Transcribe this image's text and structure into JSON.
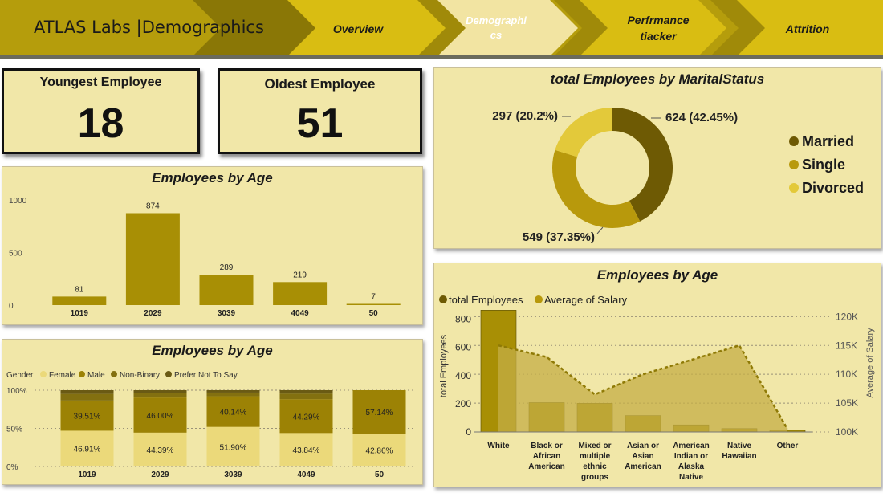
{
  "header": {
    "title": "ATLAS Labs |Demographics",
    "nav": [
      {
        "label": "Overview"
      },
      {
        "label": "Demographi cs",
        "active": true
      },
      {
        "label": "Perfrmance tiacker"
      },
      {
        "label": "Attrition"
      }
    ]
  },
  "kpis": {
    "youngest_label": "Youngest Employee",
    "youngest_value": "18",
    "oldest_label": "Oldest Employee",
    "oldest_value": "51"
  },
  "colors": {
    "banner": "#b59d0c",
    "card": "#f1e7a8",
    "bar": "#a88f05",
    "married": "#6e5a04",
    "single": "#b8990c",
    "divorced": "#e3c93a",
    "female": "#ebd97a",
    "male": "#9c8205",
    "nonbinary": "#837010",
    "prefer": "#6a5a14",
    "area": "#c4ae46"
  },
  "chart_data": [
    {
      "type": "bar",
      "title": "Employees by Age",
      "categories": [
        "1019",
        "2029",
        "3039",
        "4049",
        "50"
      ],
      "values": [
        81,
        874,
        289,
        219,
        7
      ],
      "yticks": [
        "0",
        "500",
        "1000"
      ],
      "ylim": [
        0,
        1000
      ]
    },
    {
      "type": "bar",
      "stacked": true,
      "percent": true,
      "title": "Employees by Age",
      "legend_title": "Gender",
      "categories": [
        "1019",
        "2029",
        "3039",
        "4049",
        "50"
      ],
      "yticks": [
        "0%",
        "50%",
        "100%"
      ],
      "series": [
        {
          "name": "Female",
          "values": [
            46.91,
            44.39,
            51.9,
            43.84,
            42.86
          ],
          "labels": [
            "46.91%",
            "44.39%",
            "51.90%",
            "43.84%",
            "42.86%"
          ]
        },
        {
          "name": "Male",
          "values": [
            39.51,
            46.0,
            40.14,
            44.29,
            57.14
          ],
          "labels": [
            "39.51%",
            "46.00%",
            "40.14%",
            "44.29%",
            "57.14%"
          ]
        },
        {
          "name": "Non-Binary",
          "values": [
            8.64,
            5.61,
            4.84,
            7.31,
            0
          ]
        },
        {
          "name": "Prefer Not To Say",
          "values": [
            4.94,
            4.0,
            3.12,
            4.56,
            0
          ]
        }
      ]
    },
    {
      "type": "pie",
      "title": "total Employees by MaritalStatus",
      "legend_placement": "right",
      "slices": [
        {
          "name": "Married",
          "value": 624,
          "label": "624 (42.45%)"
        },
        {
          "name": "Single",
          "value": 549,
          "label": "549 (37.35%)"
        },
        {
          "name": "Divorced",
          "value": 297,
          "label": "297 (20.2%)"
        }
      ]
    },
    {
      "type": "bar",
      "combo": true,
      "title": "Employees by Age",
      "categories": [
        "White",
        "Black or African American",
        "Mixed or multiple ethnic groups",
        "Asian or Asian American",
        "American Indian or Alaska Native",
        "Native Hawaiian",
        "Other"
      ],
      "category_lines": [
        [
          "White"
        ],
        [
          "Black or",
          "African",
          "American"
        ],
        [
          "Mixed or",
          "multiple",
          "ethnic",
          "groups"
        ],
        [
          "Asian or",
          "Asian",
          "American"
        ],
        [
          "American",
          "Indian or",
          "Alaska",
          "Native"
        ],
        [
          "Native",
          "Hawaiian"
        ],
        [
          "Other"
        ]
      ],
      "series": [
        {
          "name": "total Employees",
          "axis": "left",
          "values": [
            864,
            208,
            203,
            116,
            50,
            24,
            12
          ]
        },
        {
          "name": "Average of Salary",
          "axis": "right",
          "values": [
            115000,
            113000,
            106500,
            110000,
            112500,
            115000,
            100500
          ]
        }
      ],
      "ylabel": "total Employees",
      "y2label": "Average of Salary",
      "ylim": [
        0,
        900
      ],
      "y2lim": [
        100000,
        122000
      ],
      "yticks": [
        "0",
        "200",
        "400",
        "600",
        "800"
      ],
      "y2ticks": [
        "100K",
        "105K",
        "110K",
        "115K",
        "120K"
      ]
    }
  ]
}
